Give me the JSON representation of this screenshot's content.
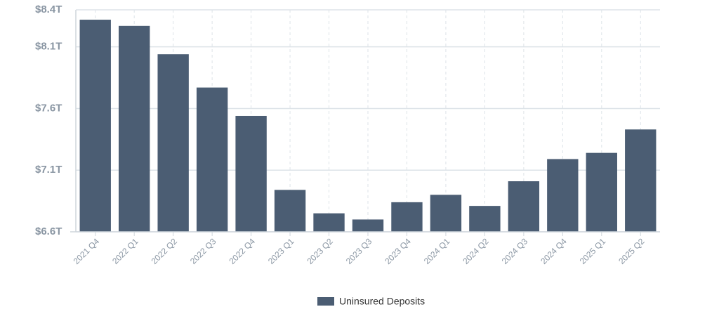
{
  "chart_data": {
    "type": "bar",
    "categories": [
      "2021 Q4",
      "2022 Q1",
      "2022 Q2",
      "2022 Q3",
      "2022 Q4",
      "2023 Q1",
      "2023 Q2",
      "2023 Q3",
      "2023 Q4",
      "2024 Q1",
      "2024 Q2",
      "2024 Q3",
      "2024 Q4",
      "2025 Q1",
      "2025 Q2"
    ],
    "series": [
      {
        "name": "Uninsured Deposits",
        "color": "#4b5d73",
        "values": [
          8.32,
          8.27,
          8.04,
          7.77,
          7.54,
          6.94,
          6.75,
          6.7,
          6.84,
          6.9,
          6.81,
          7.01,
          7.19,
          7.24,
          7.43
        ]
      }
    ],
    "ylim": [
      6.6,
      8.4
    ],
    "yticks": [
      {
        "value": 6.6,
        "label": "$6.6T"
      },
      {
        "value": 7.1,
        "label": "$7.1T"
      },
      {
        "value": 7.6,
        "label": "$7.6T"
      },
      {
        "value": 8.1,
        "label": "$8.1T"
      },
      {
        "value": 8.4,
        "label": "$8.4T"
      }
    ],
    "grid": true,
    "legend": "bottom"
  }
}
